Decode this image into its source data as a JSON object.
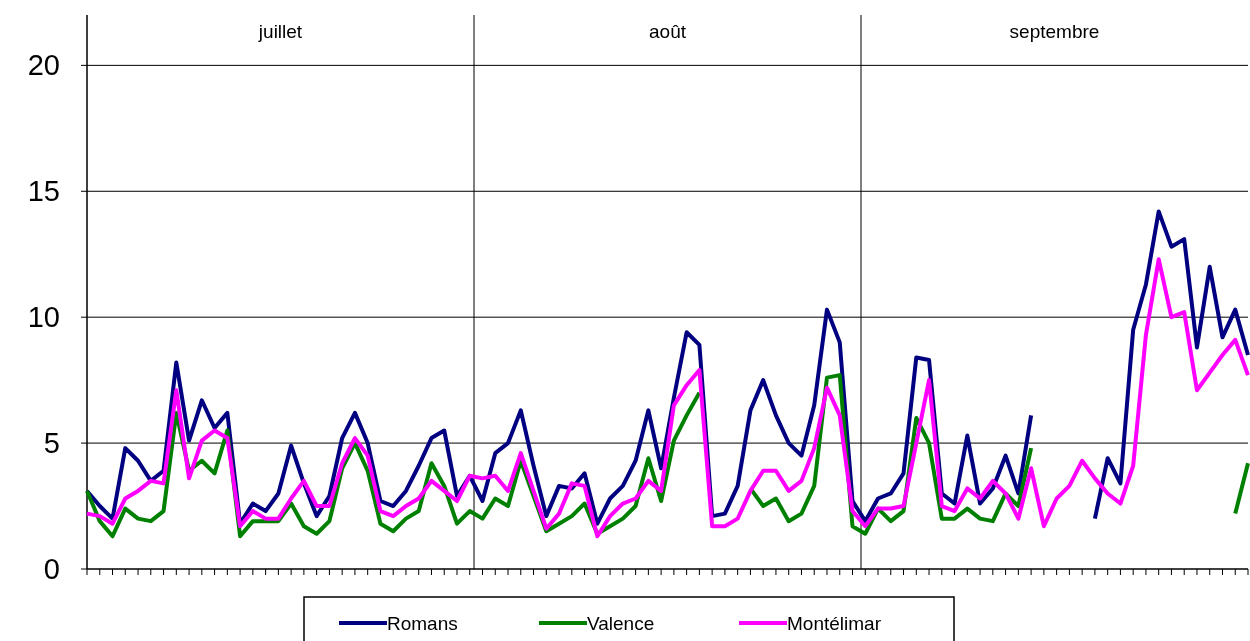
{
  "chart_data": {
    "type": "line",
    "categories": [
      null,
      null,
      null,
      null,
      null,
      null,
      null,
      null,
      null,
      null,
      null,
      null,
      null,
      null,
      null,
      null,
      null,
      null,
      null,
      null,
      null,
      null,
      null,
      null,
      null,
      null,
      null,
      null,
      null,
      null,
      null,
      null,
      null,
      null,
      null,
      null,
      null,
      null,
      null,
      null,
      null,
      null,
      null,
      null,
      null,
      null,
      null,
      null,
      null,
      null,
      null,
      null,
      null,
      null,
      null,
      null,
      null,
      null,
      null,
      null,
      null,
      null,
      null,
      null,
      null,
      null,
      null,
      null,
      null,
      null,
      null,
      null,
      null,
      null,
      null,
      null,
      null,
      null,
      null,
      null,
      null,
      null,
      null,
      null,
      null,
      null,
      null,
      null,
      null,
      null,
      null,
      null
    ],
    "series": [
      {
        "name": "Romans",
        "color": "#000080",
        "values": [
          3.1,
          2.5,
          2.0,
          4.8,
          4.3,
          3.5,
          3.9,
          8.2,
          5.1,
          6.7,
          5.6,
          6.2,
          1.8,
          2.6,
          2.3,
          3.0,
          4.9,
          3.4,
          2.1,
          2.9,
          5.2,
          6.2,
          5.0,
          2.7,
          2.5,
          3.1,
          4.1,
          5.2,
          5.5,
          2.9,
          3.7,
          2.7,
          4.6,
          5.0,
          6.3,
          4.1,
          2.1,
          3.3,
          3.2,
          3.8,
          1.8,
          2.8,
          3.3,
          4.3,
          6.3,
          4.0,
          6.8,
          9.4,
          8.9,
          2.1,
          2.2,
          3.3,
          6.3,
          7.5,
          6.1,
          5.0,
          4.5,
          6.5,
          10.3,
          9.0,
          2.7,
          1.9,
          2.8,
          3.0,
          3.8,
          8.4,
          8.3,
          3.0,
          2.6,
          5.3,
          2.6,
          3.2,
          4.5,
          3.0,
          6.1,
          null,
          null,
          null,
          null,
          2.0,
          4.4,
          3.4,
          9.5,
          11.3,
          14.2,
          12.8,
          13.1,
          8.8,
          12.0,
          9.2,
          10.3,
          8.5
        ]
      },
      {
        "name": "Valence",
        "color": "#008000",
        "values": [
          3.1,
          1.9,
          1.3,
          2.4,
          2.0,
          1.9,
          2.3,
          6.2,
          3.9,
          4.3,
          3.8,
          5.5,
          1.3,
          1.9,
          1.9,
          1.9,
          2.6,
          1.7,
          1.4,
          1.9,
          4.0,
          5.0,
          3.9,
          1.8,
          1.5,
          2.0,
          2.3,
          4.2,
          3.3,
          1.8,
          2.3,
          2.0,
          2.8,
          2.5,
          4.3,
          2.9,
          1.5,
          1.8,
          2.1,
          2.6,
          1.4,
          1.7,
          2.0,
          2.5,
          4.4,
          2.7,
          5.1,
          6.1,
          7.0,
          null,
          null,
          null,
          3.2,
          2.5,
          2.8,
          1.9,
          2.2,
          3.3,
          7.6,
          7.7,
          1.7,
          1.4,
          2.4,
          1.9,
          2.3,
          6.0,
          5.0,
          2.0,
          2.0,
          2.4,
          2.0,
          1.9,
          3.0,
          2.5,
          4.8,
          null,
          null,
          null,
          null,
          null,
          null,
          null,
          null,
          null,
          null,
          null,
          null,
          null,
          null,
          null,
          2.2,
          4.2
        ]
      },
      {
        "name": "Montélimar",
        "color": "#ff00ff",
        "values": [
          2.2,
          2.1,
          1.8,
          2.8,
          3.1,
          3.5,
          3.4,
          7.1,
          3.6,
          5.1,
          5.5,
          5.2,
          1.7,
          2.3,
          2.0,
          2.0,
          2.8,
          3.5,
          2.5,
          2.5,
          4.2,
          5.2,
          4.5,
          2.3,
          2.1,
          2.5,
          2.8,
          3.5,
          3.1,
          2.7,
          3.7,
          3.6,
          3.7,
          3.1,
          4.6,
          3.1,
          1.6,
          2.2,
          3.4,
          3.3,
          1.3,
          2.1,
          2.6,
          2.8,
          3.5,
          3.1,
          6.5,
          7.3,
          7.9,
          1.7,
          1.7,
          2.0,
          3.1,
          3.9,
          3.9,
          3.1,
          3.5,
          4.8,
          7.2,
          6.1,
          2.3,
          1.7,
          2.4,
          2.4,
          2.5,
          5.0,
          7.5,
          2.5,
          2.3,
          3.2,
          2.8,
          3.5,
          3.0,
          2.0,
          4.0,
          1.7,
          2.8,
          3.3,
          4.3,
          3.6,
          3.0,
          2.6,
          4.1,
          9.3,
          12.3,
          10.0,
          10.2,
          7.1,
          7.8,
          8.5,
          9.1,
          7.7
        ]
      }
    ],
    "ylim": [
      0,
      22
    ],
    "yticks": [
      0,
      5,
      10,
      15,
      20
    ],
    "grid": "y",
    "legend": "bottom",
    "marker": "none",
    "line_style": "solid",
    "annotations": [
      "juillet",
      "août",
      "septembre"
    ]
  }
}
